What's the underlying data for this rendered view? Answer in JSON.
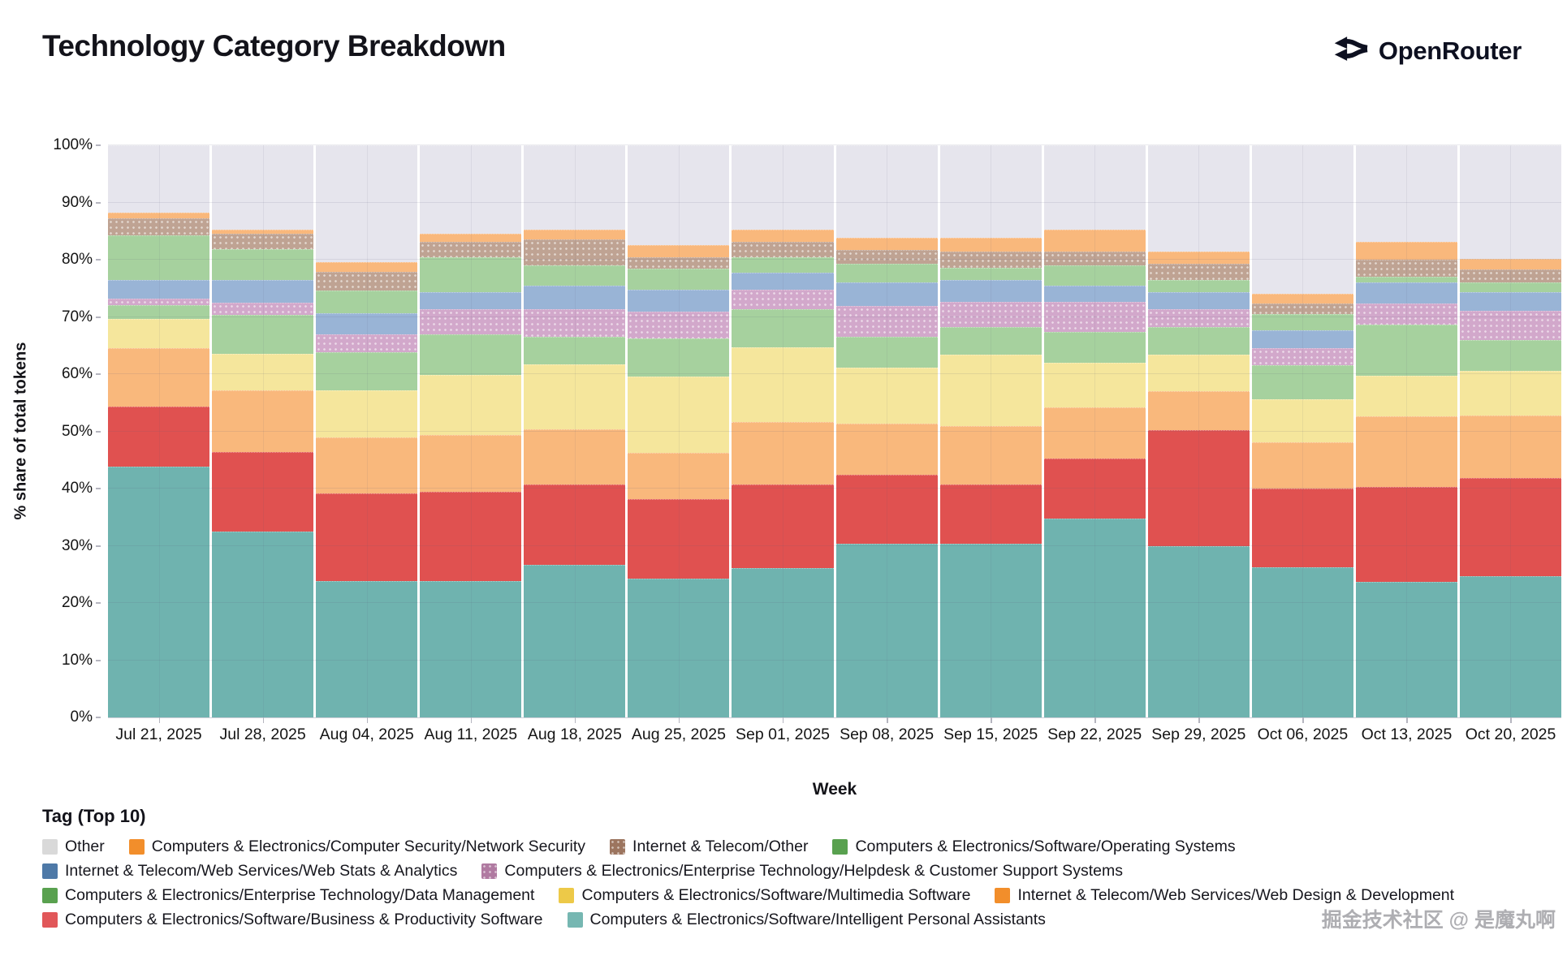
{
  "header": {
    "title": "Technology Category Breakdown",
    "brand": "OpenRouter"
  },
  "watermark": "掘金技术社区 @ 是魔丸啊",
  "chart_data": {
    "type": "bar",
    "subtype": "stacked-100-percent",
    "title": "Technology Category Breakdown",
    "xlabel": "Week",
    "ylabel": "% share of total tokens",
    "ylim": [
      0,
      100
    ],
    "grid": true,
    "legend_position": "bottom",
    "legend_title": "Tag (Top 10)",
    "y_ticks": [
      "0%",
      "10%",
      "20%",
      "30%",
      "40%",
      "50%",
      "60%",
      "70%",
      "80%",
      "90%",
      "100%"
    ],
    "categories": [
      "Jul 21, 2025",
      "Jul 28, 2025",
      "Aug 04, 2025",
      "Aug 11, 2025",
      "Aug 18, 2025",
      "Aug 25, 2025",
      "Sep 01, 2025",
      "Sep 08, 2025",
      "Sep 15, 2025",
      "Sep 22, 2025",
      "Sep 29, 2025",
      "Oct 06, 2025",
      "Oct 13, 2025",
      "Oct 20, 2025"
    ],
    "stack_order_note": "series listed bottom-to-top; values are percent of total tokens",
    "series": [
      {
        "key": "ipa",
        "label": "Computers & Electronics/Software/Intelligent Personal Assistants",
        "color": "#76b7b2",
        "fill": "#6fb3af",
        "pattern": false,
        "values": [
          43.8,
          32.5,
          23.9,
          23.9,
          26.6,
          24.2,
          26.1,
          30.4,
          30.4,
          34.8,
          29.9,
          26.3,
          23.7,
          24.7
        ]
      },
      {
        "key": "biz_prod",
        "label": "Computers & Electronics/Software/Business & Productivity Software",
        "color": "#e15759",
        "fill": "#e05150",
        "pattern": false,
        "values": [
          10.5,
          13.9,
          15.3,
          15.5,
          14.1,
          14.0,
          14.6,
          12.0,
          10.3,
          10.4,
          20.3,
          13.7,
          16.6,
          17.2
        ]
      },
      {
        "key": "web_design",
        "label": "Internet & Telecom/Web Services/Web Design & Development",
        "color": "#f28e2b",
        "fill": "#f9b87c",
        "pattern": false,
        "values": [
          10.2,
          10.8,
          9.8,
          9.9,
          9.6,
          8.0,
          10.9,
          9.0,
          10.2,
          9.0,
          6.8,
          8.1,
          12.3,
          10.9
        ]
      },
      {
        "key": "multimedia",
        "label": "Computers & Electronics/Software/Multimedia Software",
        "color": "#edc948",
        "fill": "#f5e69c",
        "pattern": false,
        "values": [
          5.1,
          6.4,
          8.2,
          10.5,
          11.4,
          13.4,
          13.1,
          9.7,
          12.5,
          7.8,
          6.4,
          7.5,
          7.1,
          7.8
        ]
      },
      {
        "key": "data_mgmt",
        "label": "Computers & Electronics/Enterprise Technology/Data Management",
        "color": "#59a14f",
        "fill": "#a6d19e",
        "pattern": false,
        "values": [
          2.4,
          6.7,
          6.6,
          7.2,
          4.8,
          6.6,
          6.6,
          5.4,
          4.8,
          5.4,
          4.8,
          5.9,
          8.9,
          5.4
        ]
      },
      {
        "key": "helpdesk",
        "label": "Computers & Electronics/Enterprise Technology/Helpdesk & Customer Support Systems",
        "color": "#b07aa1",
        "fill": "#d2a8cb",
        "pattern": true,
        "values": [
          1.2,
          2.2,
          3.1,
          4.3,
          4.8,
          4.8,
          3.5,
          5.4,
          4.5,
          5.3,
          3.1,
          3.1,
          3.8,
          5.0
        ]
      },
      {
        "key": "web_stats",
        "label": "Internet & Telecom/Web Services/Web Stats & Analytics",
        "color": "#4e79a7",
        "fill": "#99b4d6",
        "pattern": false,
        "values": [
          3.3,
          4.0,
          3.7,
          3.1,
          4.2,
          3.8,
          3.0,
          4.1,
          3.8,
          2.8,
          3.1,
          3.1,
          3.6,
          3.4
        ]
      },
      {
        "key": "os",
        "label": "Computers & Electronics/Software/Operating Systems",
        "color": "#59a14f",
        "fill": "#a6d19e",
        "pattern": false,
        "values": [
          7.7,
          5.3,
          4.0,
          6.0,
          3.5,
          3.6,
          2.7,
          3.3,
          2.1,
          3.5,
          2.1,
          2.8,
          1.1,
          1.6
        ]
      },
      {
        "key": "it_other",
        "label": "Internet & Telecom/Other",
        "color": "#9c755f",
        "fill": "#bfa393",
        "pattern": true,
        "values": [
          3.1,
          2.7,
          3.3,
          2.7,
          4.5,
          2.1,
          2.7,
          2.4,
          2.8,
          2.4,
          2.8,
          1.9,
          2.9,
          2.3
        ]
      },
      {
        "key": "net_sec",
        "label": "Computers & Electronics/Computer Security/Network Security",
        "color": "#f28e2b",
        "fill": "#f9b87c",
        "pattern": false,
        "values": [
          1.0,
          0.7,
          1.7,
          1.5,
          1.8,
          2.1,
          2.1,
          2.1,
          2.4,
          3.8,
          2.1,
          1.6,
          3.1,
          1.9
        ]
      },
      {
        "key": "other",
        "label": "Other",
        "color": "#d9d9d9",
        "fill": "#e6e5ed",
        "pattern": false,
        "values": [
          11.7,
          14.8,
          20.4,
          15.4,
          14.7,
          17.4,
          14.7,
          16.2,
          16.2,
          14.8,
          18.6,
          26.0,
          16.9,
          19.8
        ]
      }
    ],
    "legend_rows": [
      [
        "other",
        "net_sec",
        "it_other",
        "os"
      ],
      [
        "web_stats",
        "helpdesk"
      ],
      [
        "data_mgmt",
        "multimedia",
        "web_design"
      ],
      [
        "biz_prod",
        "ipa"
      ]
    ]
  }
}
